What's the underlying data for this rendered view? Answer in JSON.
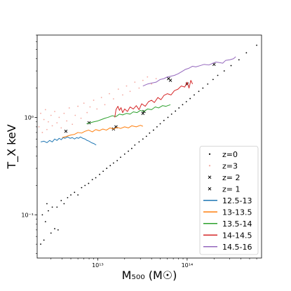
{
  "chart_data": {
    "type": "scatter",
    "xscale": "log",
    "yscale": "log",
    "xlim": [
      2100000000000.0,
      680000000000000.0
    ],
    "ylim": [
      0.036,
      7.0
    ],
    "xlabel": "M₅₀₀ (M☉)",
    "ylabel": "T_X keV",
    "x_ticks": [
      {
        "value": 10000000000000.0,
        "label": "10¹³"
      },
      {
        "value": 100000000000000.0,
        "label": "10¹⁴"
      }
    ],
    "y_ticks": [
      {
        "value": 0.1,
        "label": "10⁻¹"
      },
      {
        "value": 1,
        "label": "10⁰"
      }
    ],
    "grid": false,
    "legend_position": "bottom-right",
    "scatter_series": [
      {
        "name": "z=0",
        "marker": "dot",
        "color": "#000000",
        "points": [
          [
            2300000000000.0,
            0.05
          ],
          [
            2500000000000.0,
            0.055
          ],
          [
            3000000000000.0,
            0.065
          ],
          [
            3300000000000.0,
            0.072
          ],
          [
            2600000000000.0,
            0.085
          ],
          [
            3600000000000.0,
            0.07
          ],
          [
            2400000000000.0,
            0.1
          ],
          [
            2800000000000.0,
            0.11
          ],
          [
            3100000000000.0,
            0.12
          ],
          [
            2700000000000.0,
            0.13
          ],
          [
            3500000000000.0,
            0.12
          ],
          [
            3900000000000.0,
            0.14
          ],
          [
            4200000000000.0,
            0.13
          ],
          [
            4600000000000.0,
            0.15
          ],
          [
            5000000000000.0,
            0.16
          ],
          [
            5500000000000.0,
            0.17
          ],
          [
            6000000000000.0,
            0.16
          ],
          [
            6600000000000.0,
            0.19
          ],
          [
            7200000000000.0,
            0.2
          ],
          [
            7900000000000.0,
            0.21
          ],
          [
            8700000000000.0,
            0.23
          ],
          [
            9500000000000.0,
            0.24
          ],
          [
            10500000000000.0,
            0.26
          ],
          [
            11500000000000.0,
            0.28
          ],
          [
            12600000000000.0,
            0.3
          ],
          [
            13800000000000.0,
            0.32
          ],
          [
            15000000000000.0,
            0.34
          ],
          [
            16500000000000.0,
            0.36
          ],
          [
            18000000000000.0,
            0.39
          ],
          [
            20000000000000.0,
            0.42
          ],
          [
            22000000000000.0,
            0.45
          ],
          [
            24000000000000.0,
            0.48
          ],
          [
            26000000000000.0,
            0.52
          ],
          [
            29000000000000.0,
            0.56
          ],
          [
            32000000000000.0,
            0.6
          ],
          [
            35000000000000.0,
            0.64
          ],
          [
            38000000000000.0,
            0.69
          ],
          [
            42000000000000.0,
            0.74
          ],
          [
            46000000000000.0,
            0.8
          ],
          [
            50000000000000.0,
            0.86
          ],
          [
            55000000000000.0,
            0.93
          ],
          [
            61000000000000.0,
            1.0
          ],
          [
            67000000000000.0,
            1.08
          ],
          [
            74000000000000.0,
            1.16
          ],
          [
            81000000000000.0,
            1.25
          ],
          [
            89000000000000.0,
            1.35
          ],
          [
            98000000000000.0,
            1.45
          ],
          [
            108000000000000.0,
            1.56
          ],
          [
            120000000000000.0,
            1.7
          ],
          [
            135000000000000.0,
            1.85
          ],
          [
            150000000000000.0,
            2.0
          ],
          [
            170000000000000.0,
            2.2
          ],
          [
            195000000000000.0,
            2.45
          ],
          [
            220000000000000.0,
            2.7
          ],
          [
            260000000000000.0,
            3.0
          ],
          [
            310000000000000.0,
            3.4
          ],
          [
            380000000000000.0,
            3.9
          ],
          [
            460000000000000.0,
            4.6
          ],
          [
            600000000000000.0,
            5.5
          ]
        ]
      },
      {
        "name": "z=3",
        "marker": "dot",
        "color": "#f4a9a0",
        "points": [
          [
            2200000000000.0,
            0.8
          ],
          [
            2300000000000.0,
            1.1
          ],
          [
            2400000000000.0,
            0.7
          ],
          [
            2500000000000.0,
            0.95
          ],
          [
            2600000000000.0,
            1.2
          ],
          [
            2700000000000.0,
            0.75
          ],
          [
            2800000000000.0,
            0.9
          ],
          [
            3000000000000.0,
            1.05
          ],
          [
            3100000000000.0,
            0.82
          ],
          [
            3300000000000.0,
            1.15
          ],
          [
            3500000000000.0,
            0.88
          ],
          [
            3700000000000.0,
            1.0
          ],
          [
            3900000000000.0,
            0.78
          ],
          [
            4200000000000.0,
            1.1
          ],
          [
            4500000000000.0,
            0.92
          ],
          [
            4800000000000.0,
            1.25
          ],
          [
            5200000000000.0,
            0.85
          ],
          [
            5600000000000.0,
            1.05
          ],
          [
            6000000000000.0,
            1.3
          ],
          [
            6500000000000.0,
            0.98
          ],
          [
            7000000000000.0,
            1.4
          ],
          [
            7600000000000.0,
            1.12
          ],
          [
            8200000000000.0,
            1.28
          ],
          [
            9000000000000.0,
            1.5
          ],
          [
            9800000000000.0,
            1.22
          ],
          [
            11000000000000.0,
            1.6
          ],
          [
            12000000000000.0,
            1.35
          ],
          [
            13500000000000.0,
            1.75
          ],
          [
            15000000000000.0,
            1.55
          ],
          [
            17000000000000.0,
            1.95
          ],
          [
            19000000000000.0,
            1.7
          ],
          [
            21000000000000.0,
            2.1
          ],
          [
            23000000000000.0,
            1.85
          ],
          [
            26000000000000.0,
            2.3
          ],
          [
            29000000000000.0,
            2.0
          ],
          [
            32000000000000.0,
            2.4
          ],
          [
            36000000000000.0,
            2.6
          ],
          [
            40000000000000.0,
            2.2
          ],
          [
            45000000000000.0,
            2.5
          ]
        ]
      },
      {
        "name": "z= 2",
        "marker": "x",
        "color": "#000000",
        "points": [
          [
            200000000000000.0,
            3.5
          ],
          [
            62000000000000.0,
            2.5
          ],
          [
            32000000000000.0,
            1.1
          ],
          [
            4400000000000.0,
            0.72
          ],
          [
            15000000000000.0,
            0.76
          ]
        ]
      },
      {
        "name": "z= 1",
        "marker": "x",
        "color": "#000000",
        "points": [
          [
            65000000000000.0,
            2.4
          ],
          [
            33000000000000.0,
            1.15
          ],
          [
            8000000000000.0,
            0.88
          ],
          [
            16000000000000.0,
            0.8
          ],
          [
            100000000000000.0,
            2.2
          ]
        ]
      }
    ],
    "line_series": [
      {
        "name": "12.5-13",
        "color": "#1f77b4",
        "points": [
          [
            2300000000000.0,
            0.56
          ],
          [
            2500000000000.0,
            0.57
          ],
          [
            2700000000000.0,
            0.55
          ],
          [
            2900000000000.0,
            0.58
          ],
          [
            3100000000000.0,
            0.56
          ],
          [
            3300000000000.0,
            0.6
          ],
          [
            3500000000000.0,
            0.58
          ],
          [
            3700000000000.0,
            0.61
          ],
          [
            3900000000000.0,
            0.59
          ],
          [
            4100000000000.0,
            0.62
          ],
          [
            4300000000000.0,
            0.61
          ],
          [
            4600000000000.0,
            0.63
          ],
          [
            4900000000000.0,
            0.61
          ],
          [
            5200000000000.0,
            0.62
          ],
          [
            5500000000000.0,
            0.6
          ],
          [
            5800000000000.0,
            0.62
          ],
          [
            6100000000000.0,
            0.61
          ],
          [
            6400000000000.0,
            0.63
          ],
          [
            6800000000000.0,
            0.61
          ],
          [
            7200000000000.0,
            0.6
          ],
          [
            7600000000000.0,
            0.58
          ],
          [
            8000000000000.0,
            0.57
          ],
          [
            8500000000000.0,
            0.55
          ],
          [
            9000000000000.0,
            0.54
          ],
          [
            9600000000000.0,
            0.52
          ]
        ]
      },
      {
        "name": "13-13.5",
        "color": "#ff7f0e",
        "points": [
          [
            4000000000000.0,
            0.62
          ],
          [
            4500000000000.0,
            0.64
          ],
          [
            5000000000000.0,
            0.66
          ],
          [
            5500000000000.0,
            0.67
          ],
          [
            6000000000000.0,
            0.7
          ],
          [
            6600000000000.0,
            0.69
          ],
          [
            7200000000000.0,
            0.72
          ],
          [
            7900000000000.0,
            0.74
          ],
          [
            8700000000000.0,
            0.71
          ],
          [
            9500000000000.0,
            0.75
          ],
          [
            10400000000000.0,
            0.73
          ],
          [
            11400000000000.0,
            0.76
          ],
          [
            12500000000000.0,
            0.74
          ],
          [
            13700000000000.0,
            0.78
          ],
          [
            15000000000000.0,
            0.76
          ],
          [
            16500000000000.0,
            0.79
          ],
          [
            18000000000000.0,
            0.77
          ],
          [
            20000000000000.0,
            0.8
          ],
          [
            22000000000000.0,
            0.78
          ],
          [
            24000000000000.0,
            0.82
          ],
          [
            27000000000000.0,
            0.8
          ],
          [
            30000000000000.0,
            0.83
          ],
          [
            32000000000000.0,
            0.81
          ]
        ]
      },
      {
        "name": "13.5-14",
        "color": "#2ca02c",
        "points": [
          [
            7500000000000.0,
            0.86
          ],
          [
            8200000000000.0,
            0.88
          ],
          [
            9000000000000.0,
            0.9
          ],
          [
            10000000000000.0,
            0.92
          ],
          [
            11000000000000.0,
            0.95
          ],
          [
            12000000000000.0,
            0.98
          ],
          [
            13000000000000.0,
            1.0
          ],
          [
            14500000000000.0,
            1.04
          ],
          [
            16000000000000.0,
            1.02
          ],
          [
            17500000000000.0,
            1.08
          ],
          [
            19000000000000.0,
            1.06
          ],
          [
            21000000000000.0,
            1.1
          ],
          [
            23000000000000.0,
            1.08
          ],
          [
            25000000000000.0,
            1.14
          ],
          [
            27500000000000.0,
            1.12
          ],
          [
            30000000000000.0,
            1.18
          ],
          [
            33000000000000.0,
            1.15
          ],
          [
            36000000000000.0,
            1.22
          ],
          [
            40000000000000.0,
            1.2
          ],
          [
            44000000000000.0,
            1.28
          ],
          [
            48000000000000.0,
            1.25
          ],
          [
            53000000000000.0,
            1.32
          ],
          [
            58000000000000.0,
            1.3
          ],
          [
            65000000000000.0,
            1.35
          ]
        ]
      },
      {
        "name": "14-14.5",
        "color": "#d62728",
        "points": [
          [
            15500000000000.0,
            1.0
          ],
          [
            16000000000000.0,
            1.2
          ],
          [
            16800000000000.0,
            1.3
          ],
          [
            17500000000000.0,
            1.18
          ],
          [
            18200000000000.0,
            1.26
          ],
          [
            19000000000000.0,
            1.12
          ],
          [
            20000000000000.0,
            1.22
          ],
          [
            21500000000000.0,
            1.15
          ],
          [
            23000000000000.0,
            1.28
          ],
          [
            25000000000000.0,
            1.22
          ],
          [
            27000000000000.0,
            1.32
          ],
          [
            29000000000000.0,
            1.2
          ],
          [
            31000000000000.0,
            1.38
          ],
          [
            34000000000000.0,
            1.3
          ],
          [
            37000000000000.0,
            1.45
          ],
          [
            40000000000000.0,
            1.5
          ],
          [
            43000000000000.0,
            1.42
          ],
          [
            47000000000000.0,
            1.6
          ],
          [
            51000000000000.0,
            1.52
          ],
          [
            55000000000000.0,
            1.68
          ],
          [
            60000000000000.0,
            1.75
          ],
          [
            66000000000000.0,
            1.7
          ],
          [
            72000000000000.0,
            1.88
          ],
          [
            79000000000000.0,
            1.95
          ],
          [
            86000000000000.0,
            2.1
          ],
          [
            94000000000000.0,
            2.05
          ],
          [
            100000000000000.0,
            2.3
          ],
          [
            105000000000000.0,
            2.0
          ],
          [
            110000000000000.0,
            2.4
          ],
          [
            115000000000000.0,
            2.2
          ]
        ]
      },
      {
        "name": "14.5-16",
        "color": "#9467bd",
        "points": [
          [
            32000000000000.0,
            2.1
          ],
          [
            36000000000000.0,
            2.2
          ],
          [
            40000000000000.0,
            2.25
          ],
          [
            45000000000000.0,
            2.3
          ],
          [
            50000000000000.0,
            2.45
          ],
          [
            55000000000000.0,
            2.5
          ],
          [
            60000000000000.0,
            2.6
          ],
          [
            66000000000000.0,
            2.65
          ],
          [
            72000000000000.0,
            2.7
          ],
          [
            79000000000000.0,
            2.8
          ],
          [
            87000000000000.0,
            2.95
          ],
          [
            95000000000000.0,
            3.1
          ],
          [
            105000000000000.0,
            3.2
          ],
          [
            115000000000000.0,
            3.35
          ],
          [
            125000000000000.0,
            3.3
          ],
          [
            140000000000000.0,
            3.4
          ],
          [
            155000000000000.0,
            3.5
          ],
          [
            175000000000000.0,
            3.45
          ],
          [
            195000000000000.0,
            3.6
          ],
          [
            210000000000000.0,
            3.7
          ],
          [
            230000000000000.0,
            3.65
          ],
          [
            250000000000000.0,
            3.6
          ],
          [
            270000000000000.0,
            3.85
          ],
          [
            300000000000000.0,
            3.9
          ],
          [
            330000000000000.0,
            4.0
          ],
          [
            350000000000000.0,
            4.2
          ]
        ]
      }
    ]
  }
}
